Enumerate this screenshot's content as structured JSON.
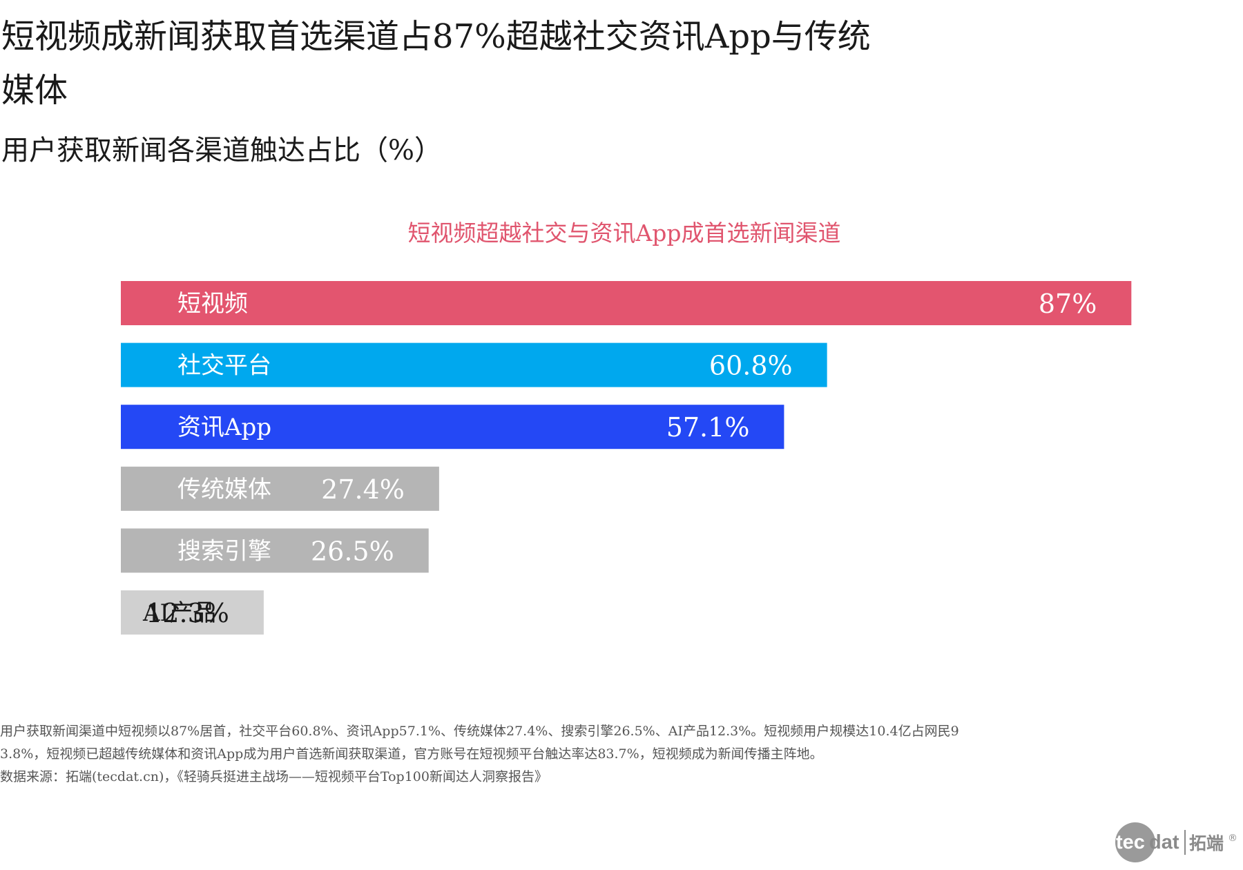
{
  "header": {
    "title": "短视频成新闻获取首选渠道占87%超越社交资讯App与传统媒体",
    "subtitle": "用户获取新闻各渠道触达占比（%）"
  },
  "chart_data": {
    "type": "bar",
    "orientation": "horizontal",
    "title": "短视频超越社交与资讯App成首选新闻渠道",
    "categories": [
      "短视频",
      "社交平台",
      "资讯App",
      "传统媒体",
      "搜索引擎",
      "AI产品"
    ],
    "values": [
      87,
      60.8,
      57.1,
      27.4,
      26.5,
      12.3
    ],
    "value_labels": [
      "87%",
      "60.8%",
      "57.1%",
      "27.4%",
      "26.5%",
      "12.3%"
    ],
    "colors": [
      "#e3556f",
      "#00a8ee",
      "#2448f5",
      "#b5b5b5",
      "#b5b5b5",
      "#d0d0d0"
    ],
    "label_colors": [
      "#ffffff",
      "#ffffff",
      "#ffffff",
      "#ffffff",
      "#ffffff",
      "#1a1a1a"
    ],
    "xlim": [
      0,
      100
    ],
    "grid": false,
    "legend": "none",
    "xlabel": "",
    "ylabel": ""
  },
  "notes": {
    "description": "用户获取新闻渠道中短视频以87%居首，社交平台60.8%、资讯App57.1%、传统媒体27.4%、搜索引擎26.5%、AI产品12.3%。短视频用户规模达10.4亿占网民93.8%，短视频已超越传统媒体和资讯App成为用户首选新闻获取渠道，官方账号在短视频平台触达率达83.7%，短视频成为新闻传播主阵地。",
    "source": "数据来源：拓端(tecdat.cn)，《轻骑兵挺进主战场——短视频平台Top100新闻达人洞察报告》"
  },
  "logo": {
    "brand": "tecdat",
    "cn_name": "拓端",
    "mark": "®",
    "color": "#8a8a8a"
  }
}
